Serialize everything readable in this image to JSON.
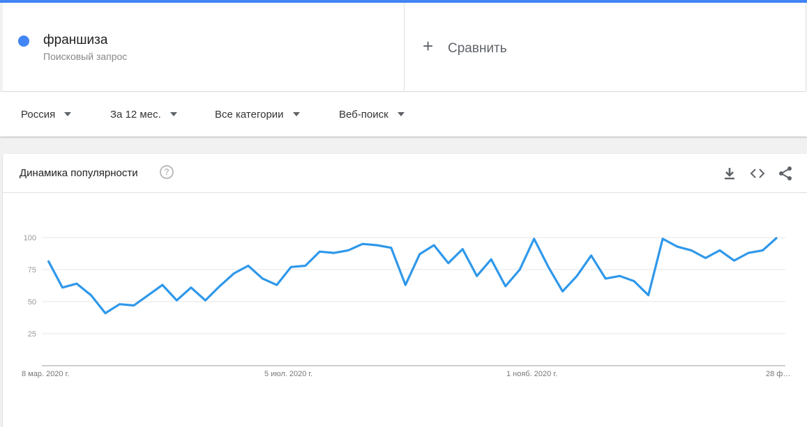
{
  "search_term": {
    "name": "франшиза",
    "type": "Поисковый запрос",
    "color": "#4285f4"
  },
  "compare": {
    "label": "Сравнить"
  },
  "filters": {
    "region": "Россия",
    "period": "За 12 мес.",
    "category": "Все категории",
    "search_type": "Веб-поиск"
  },
  "card": {
    "title": "Динамика популярности",
    "help_symbol": "?"
  },
  "chart_data": {
    "type": "line",
    "title": "Динамика популярности",
    "y_ticks": [
      25,
      50,
      75,
      100
    ],
    "x_tick_labels": [
      "8 мар. 2020 г.",
      "5 июл. 2020 г.",
      "1 нояб. 2020 г.",
      "28 ф…"
    ],
    "ylim": [
      0,
      100
    ],
    "grid": true,
    "series": [
      {
        "name": "франшиза",
        "color": "#2f98ea",
        "values": [
          82,
          61,
          64,
          55,
          41,
          48,
          47,
          55,
          63,
          51,
          61,
          51,
          62,
          72,
          78,
          68,
          63,
          77,
          78,
          89,
          88,
          90,
          95,
          94,
          92,
          63,
          87,
          94,
          80,
          91,
          70,
          83,
          62,
          75,
          99,
          77,
          58,
          70,
          86,
          68,
          70,
          66,
          55,
          99,
          93,
          90,
          84,
          90,
          82,
          88,
          90,
          100
        ]
      }
    ]
  }
}
